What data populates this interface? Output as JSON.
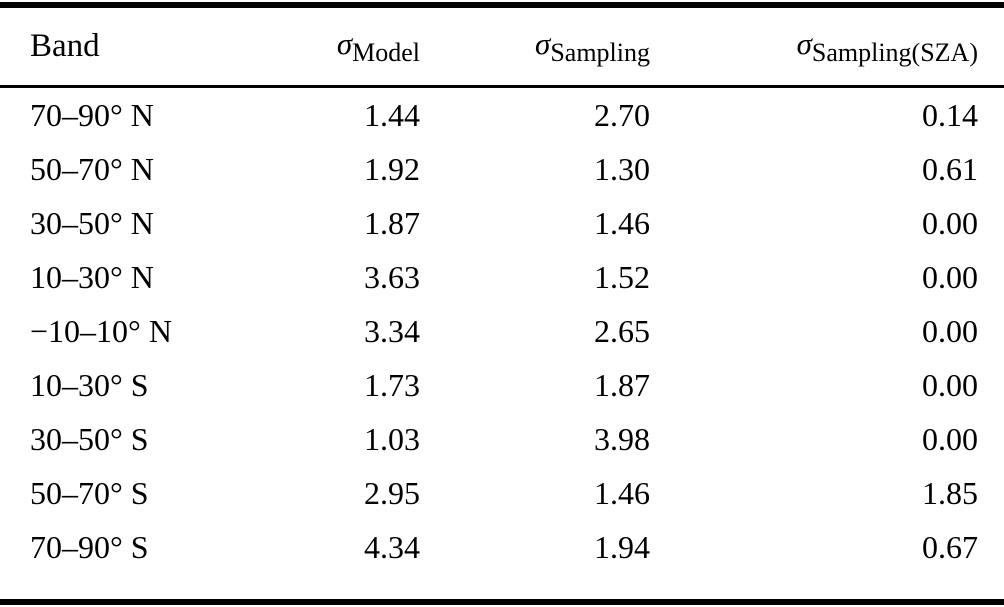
{
  "colors": {
    "background": "#ffffff",
    "text": "#000000",
    "rule": "#000000"
  },
  "header": {
    "band_label": "Band",
    "cols": [
      {
        "symbol": "σ",
        "sub": "Model"
      },
      {
        "symbol": "σ",
        "sub": "Sampling"
      },
      {
        "symbol": "σ",
        "sub": "Sampling(SZA)"
      }
    ]
  },
  "rows": [
    {
      "band": "70–90° N",
      "model": "1.44",
      "sampling": "2.70",
      "sampling_sza": "0.14"
    },
    {
      "band": "50–70° N",
      "model": "1.92",
      "sampling": "1.30",
      "sampling_sza": "0.61"
    },
    {
      "band": "30–50° N",
      "model": "1.87",
      "sampling": "1.46",
      "sampling_sza": "0.00"
    },
    {
      "band": "10–30° N",
      "model": "3.63",
      "sampling": "1.52",
      "sampling_sza": "0.00"
    },
    {
      "band": "−10–10° N",
      "model": "3.34",
      "sampling": "2.65",
      "sampling_sza": "0.00"
    },
    {
      "band": "10–30° S",
      "model": "1.73",
      "sampling": "1.87",
      "sampling_sza": "0.00"
    },
    {
      "band": "30–50° S",
      "model": "1.03",
      "sampling": "3.98",
      "sampling_sza": "0.00"
    },
    {
      "band": "50–70° S",
      "model": "2.95",
      "sampling": "1.46",
      "sampling_sza": "1.85"
    },
    {
      "band": "70–90° S",
      "model": "4.34",
      "sampling": "1.94",
      "sampling_sza": "0.67"
    }
  ],
  "chart_data": {
    "type": "table",
    "title": "",
    "columns": [
      "Band",
      "σ_Model",
      "σ_Sampling",
      "σ_Sampling(SZA)"
    ],
    "categories": [
      "70–90° N",
      "50–70° N",
      "30–50° N",
      "10–30° N",
      "−10–10° N",
      "10–30° S",
      "30–50° S",
      "50–70° S",
      "70–90° S"
    ],
    "series": [
      {
        "name": "σ_Model",
        "values": [
          1.44,
          1.92,
          1.87,
          3.63,
          3.34,
          1.73,
          1.03,
          2.95,
          4.34
        ]
      },
      {
        "name": "σ_Sampling",
        "values": [
          2.7,
          1.3,
          1.46,
          1.52,
          2.65,
          1.87,
          3.98,
          1.46,
          1.94
        ]
      },
      {
        "name": "σ_Sampling(SZA)",
        "values": [
          0.14,
          0.61,
          0.0,
          0.0,
          0.0,
          0.0,
          0.0,
          1.85,
          0.67
        ]
      }
    ]
  }
}
